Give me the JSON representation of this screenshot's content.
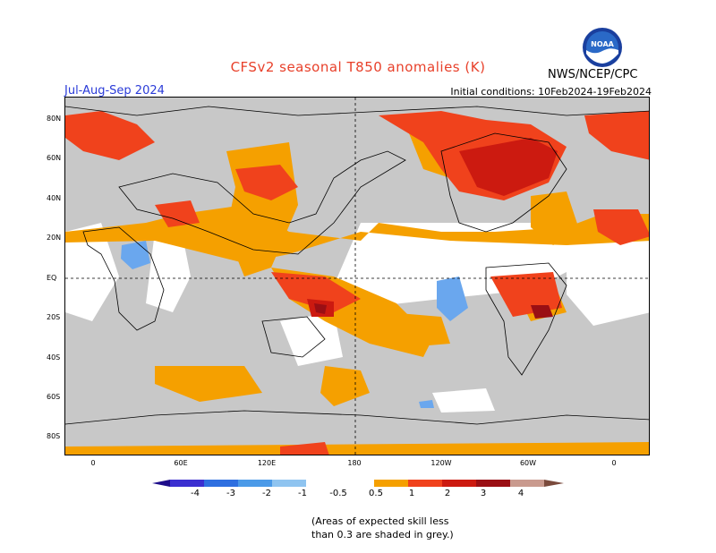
{
  "header": {
    "title": "CFSv2 seasonal T850 anomalies (K)",
    "season": "Jul-Aug-Sep 2024",
    "initial_conditions": "Initial conditions: 10Feb2024-19Feb2024",
    "agency": "NWS/NCEP/CPC",
    "logo_text": "NOAA"
  },
  "map": {
    "lat_labels": [
      "80N",
      "60N",
      "40N",
      "20N",
      "EQ",
      "20S",
      "40S",
      "60S",
      "80S"
    ],
    "lon_labels": [
      "0",
      "60E",
      "120E",
      "180",
      "120W",
      "60W",
      "0"
    ],
    "colors": {
      "ocean_land_low_skill": "#c8c8c8",
      "neutral": "#ffffff",
      "light_orange": "#f5a000",
      "orange_red": "#f0421c",
      "red": "#cc1a10",
      "dark_red": "#9a0f14",
      "light_blue": "#6aa7ee",
      "coastline": "#000000"
    }
  },
  "colorbar": {
    "labels": [
      "-4",
      "-3",
      "-2",
      "-1",
      "-0.5",
      "0.5",
      "1",
      "2",
      "3",
      "4"
    ],
    "colors": [
      "#1d0c8a",
      "#3b2fd0",
      "#2e6fe0",
      "#4b9ae8",
      "#8fc4f0",
      "#ffffff",
      "#f5a000",
      "#f0421c",
      "#cc1a10",
      "#9a0f14",
      "#c99a8e",
      "#7a4a3c"
    ]
  },
  "footer": {
    "note_line1": "(Areas of expected skill less",
    "note_line2": "than 0.3 are shaded in grey.)"
  }
}
